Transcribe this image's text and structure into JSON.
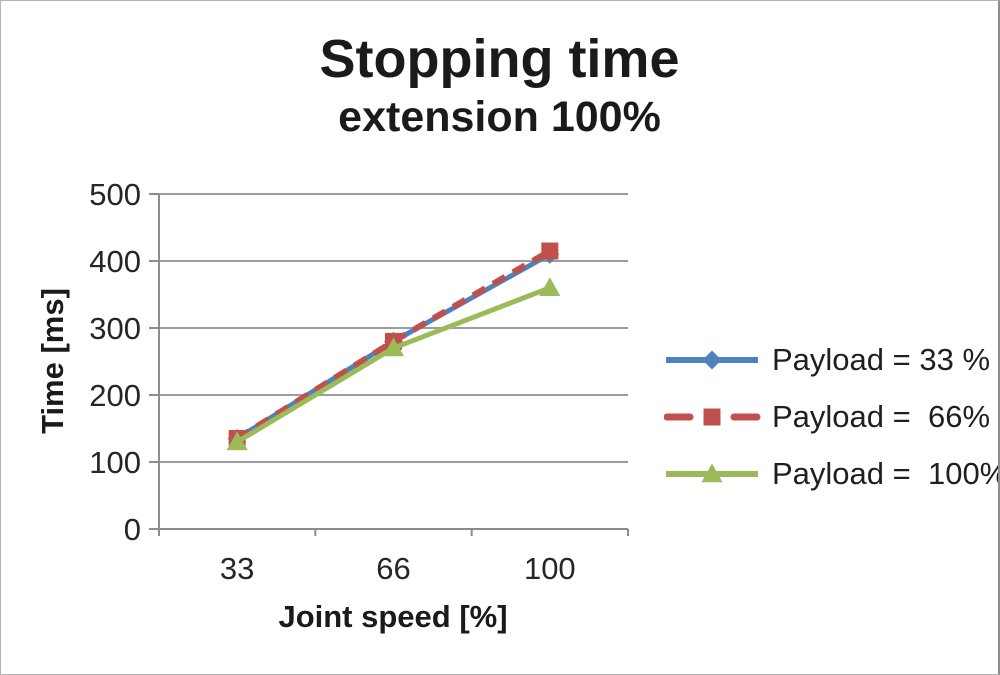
{
  "window": {
    "background": "#ffffff",
    "frame_border_color": "#8f8f8f"
  },
  "chart_data": {
    "type": "line",
    "title": "Stopping time",
    "subtitle": "extension 100%",
    "xlabel": "Joint speed [%]",
    "ylabel": "Time [ms]",
    "categories": [
      "33",
      "66",
      "100"
    ],
    "x_values": [
      33,
      66,
      100
    ],
    "ylim": [
      0,
      500
    ],
    "yticks": [
      0,
      100,
      200,
      300,
      400,
      500
    ],
    "grid": "horizontal",
    "grid_color": "#9c9c9c",
    "axis_color": "#8c8c8c",
    "text_color": "#262626",
    "legend_position": "right",
    "series": [
      {
        "name": "Payload = 33 %",
        "values": [
          135,
          280,
          410
        ],
        "color": "#4F81BD",
        "marker": "diamond",
        "line_style": "solid"
      },
      {
        "name": "Payload =  66%",
        "values": [
          135,
          280,
          415
        ],
        "color": "#C0504D",
        "marker": "square",
        "line_style": "dashed"
      },
      {
        "name": "Payload =  100%",
        "values": [
          130,
          270,
          360
        ],
        "color": "#9BBB59",
        "marker": "triangle",
        "line_style": "solid"
      }
    ]
  }
}
